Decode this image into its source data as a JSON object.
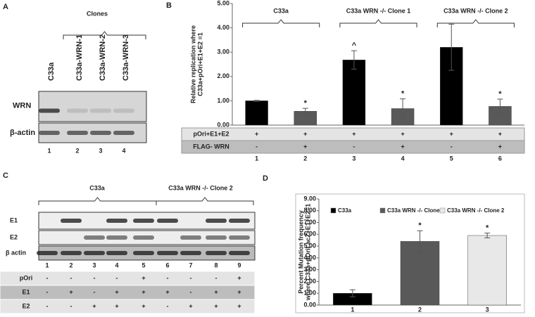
{
  "panel_a": {
    "label": "A",
    "title": "Clones",
    "lanes": [
      "C33a",
      "C33a-WRN-1",
      "C33a-WRN-2",
      "C33a-WRN-3"
    ],
    "blots": [
      "WRN",
      "β-actin"
    ],
    "lane_numbers": [
      "1",
      "2",
      "3",
      "4"
    ]
  },
  "panel_c": {
    "label": "C",
    "groups": [
      "C33a",
      "C33a WRN -/- Clone 2"
    ],
    "blots": [
      "E1",
      "E2",
      "β actin"
    ],
    "lane_numbers": [
      "1",
      "2",
      "3",
      "4",
      "5",
      "6",
      "7",
      "8",
      "9"
    ],
    "table": [
      {
        "label": "pOri",
        "cells": [
          "-",
          "-",
          "-",
          "-",
          "+",
          "-",
          "-",
          "-",
          "+"
        ]
      },
      {
        "label": "E1",
        "cells": [
          "-",
          "+",
          "-",
          "+",
          "+",
          "+",
          "-",
          "+",
          "+"
        ]
      },
      {
        "label": "E2",
        "cells": [
          "-",
          "-",
          "+",
          "+",
          "+",
          "-",
          "+",
          "+",
          "+"
        ]
      }
    ]
  },
  "chart_data": [
    {
      "type": "bar",
      "label": "B",
      "y_label": [
        "Relative replication where",
        "C33a+pOri+E1+E2 =1"
      ],
      "categories": [
        "1",
        "2",
        "3",
        "4",
        "5",
        "6"
      ],
      "series": [
        {
          "values": [
            1.0,
            0.57,
            2.68,
            0.68,
            3.2,
            0.77
          ],
          "errors": [
            0.02,
            0.12,
            0.38,
            0.4,
            0.95,
            0.3
          ],
          "colors": [
            "#000000",
            "#595959",
            "#000000",
            "#595959",
            "#000000",
            "#595959"
          ]
        }
      ],
      "ylim": [
        0,
        5
      ],
      "yticks": [
        {
          "value": 0,
          "label": "0.00"
        },
        {
          "value": 1,
          "label": "1.00"
        },
        {
          "value": 2,
          "label": "2.00"
        },
        {
          "value": 3,
          "label": "3.00"
        },
        {
          "value": 4,
          "label": "4.00"
        },
        {
          "value": 5,
          "label": "5.00"
        }
      ],
      "groups": [
        "C33a",
        "C33a WRN -/- Clone 1",
        "C33a WRN -/- Clone 2"
      ],
      "annotations": [
        {
          "text": "*",
          "x": "2"
        },
        {
          "text": "^",
          "x": "3"
        },
        {
          "text": "*",
          "x": "4"
        },
        {
          "text": "*",
          "x": "6"
        }
      ],
      "table": [
        {
          "label": "pOri+E1+E2",
          "cells": [
            "+",
            "+",
            "+",
            "+",
            "+",
            "+"
          ]
        },
        {
          "label": "FLAG- WRN",
          "cells": [
            "-",
            "+",
            "-",
            "+",
            "-",
            "+"
          ]
        }
      ]
    },
    {
      "type": "bar",
      "label": "D",
      "y_label": [
        "Percent Mutation frequency",
        "where C33a+pOriLacZ+E1+E2=1"
      ],
      "categories": [
        "1",
        "2",
        "3"
      ],
      "series": [
        {
          "name": "C33a",
          "color": "#000000",
          "values": [
            1.0,
            null,
            null
          ],
          "errors": [
            0.3,
            null,
            null
          ]
        },
        {
          "name": "C33a WRN -/- Clone 1",
          "color": "#595959",
          "values": [
            null,
            5.4,
            null
          ],
          "errors": [
            null,
            0.9,
            null
          ]
        },
        {
          "name": "C33a WRN -/- Clone 2",
          "color": "#e8e8e8",
          "values": [
            null,
            null,
            5.9
          ],
          "errors": [
            null,
            null,
            0.2
          ]
        }
      ],
      "ylim": [
        0,
        9
      ],
      "yticks": [
        {
          "value": 0,
          "label": "0.00"
        },
        {
          "value": 1,
          "label": "1.00"
        },
        {
          "value": 2,
          "label": "2.00"
        },
        {
          "value": 3,
          "label": "3.00"
        },
        {
          "value": 4,
          "label": "4.00"
        },
        {
          "value": 5,
          "label": "5.00"
        },
        {
          "value": 6,
          "label": "6.00"
        },
        {
          "value": 7,
          "label": "7.00"
        },
        {
          "value": 8,
          "label": "8.00"
        },
        {
          "value": 9,
          "label": "9.00"
        }
      ],
      "annotations": [
        {
          "text": "*",
          "x": "2"
        },
        {
          "text": "*",
          "x": "3"
        }
      ]
    }
  ]
}
